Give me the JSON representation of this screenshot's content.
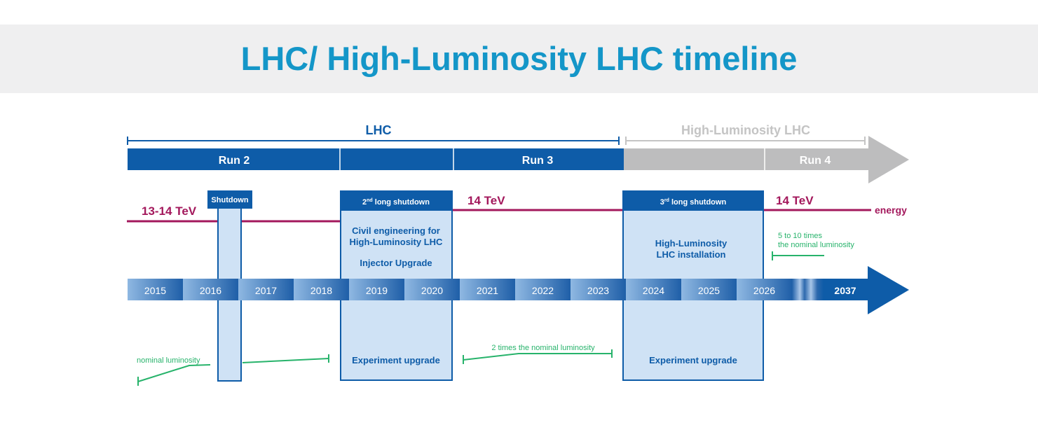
{
  "title": "LHC/ High-Luminosity LHC timeline",
  "phases": {
    "lhc": "LHC",
    "hl_lhc": "High-Luminosity LHC"
  },
  "runs": {
    "run2": "Run 2",
    "run3": "Run 3",
    "run4": "Run 4"
  },
  "energy": {
    "e1": "13-14 TeV",
    "e2": "14 TeV",
    "e3": "14 TeV",
    "label": "energy"
  },
  "shutdowns": {
    "s1": {
      "title": "Shutdown"
    },
    "s2": {
      "title_prefix": "2",
      "title_sup": "nd",
      "title_rest": " long shutdown",
      "line1": "Civil engineering for",
      "line2": "High-Luminosity LHC",
      "line3": "Injector Upgrade",
      "bottom": "Experiment upgrade"
    },
    "s3": {
      "title_prefix": "3",
      "title_sup": "rd",
      "title_rest": " long shutdown",
      "line1": "High-Luminosity",
      "line2": "LHC installation",
      "bottom": "Experiment upgrade"
    }
  },
  "years": [
    "2015",
    "2016",
    "2017",
    "2018",
    "2019",
    "2020",
    "2021",
    "2022",
    "2023",
    "2024",
    "2025",
    "2026",
    "2037"
  ],
  "luminosity": {
    "l1": "nominal luminosity",
    "l2": "2 times the nominal luminosity",
    "l3_line1": "5 to 10 times",
    "l3_line2": "the nominal luminosity"
  },
  "colors": {
    "title": "#1496c8",
    "dark_blue": "#0e5ca8",
    "grey": "#bdbdbe",
    "light_grey_text": "#c4c4c4",
    "energy": "#a3185c",
    "box_fill": "#cfe2f5",
    "box_stroke": "#0e5ca8",
    "lumi_green": "#27b36b"
  }
}
